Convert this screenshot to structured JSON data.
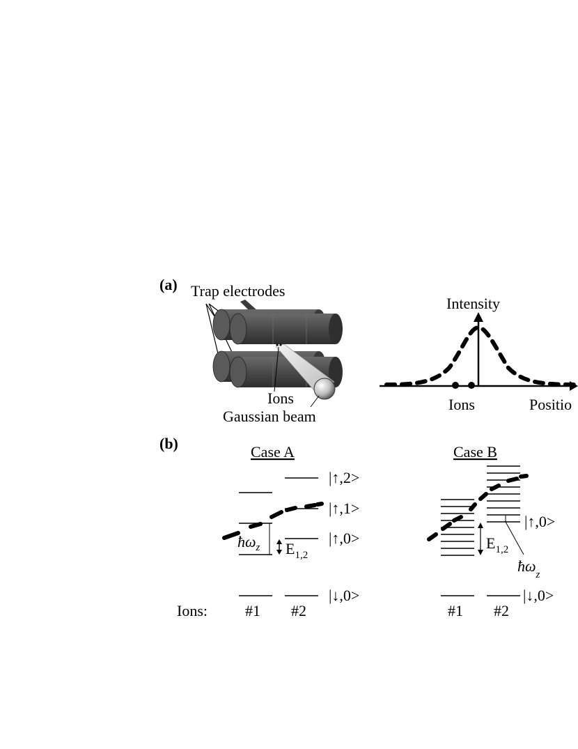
{
  "panel_a": {
    "label": "(a)",
    "trap_label": "Trap electrodes",
    "ions_label": "Ions",
    "beam_label": "Gaussian beam",
    "plot": {
      "y_label": "Intensity",
      "x_label": "Positio",
      "ions_label": "Ions"
    }
  },
  "panel_b": {
    "label": "(b)",
    "case_a": {
      "title": "Case A",
      "level_up2": "|↑,2>",
      "level_up1": "|↑,1>",
      "level_up0": "|↑,0>",
      "level_down0": "|↓,0>",
      "spacing_symbol": "ħω",
      "spacing_sub": "z",
      "shift_symbol": "E",
      "shift_sub": "1,2"
    },
    "case_b": {
      "title": "Case B",
      "level_up0": "|↑,0>",
      "level_down0": "|↓,0>",
      "shift_symbol": "E",
      "shift_sub": "1,2",
      "spacing_symbol": "ħω",
      "spacing_sub": "z"
    },
    "ions_row_label": "Ions:",
    "ion_1": "#1",
    "ion_2": "#2"
  }
}
